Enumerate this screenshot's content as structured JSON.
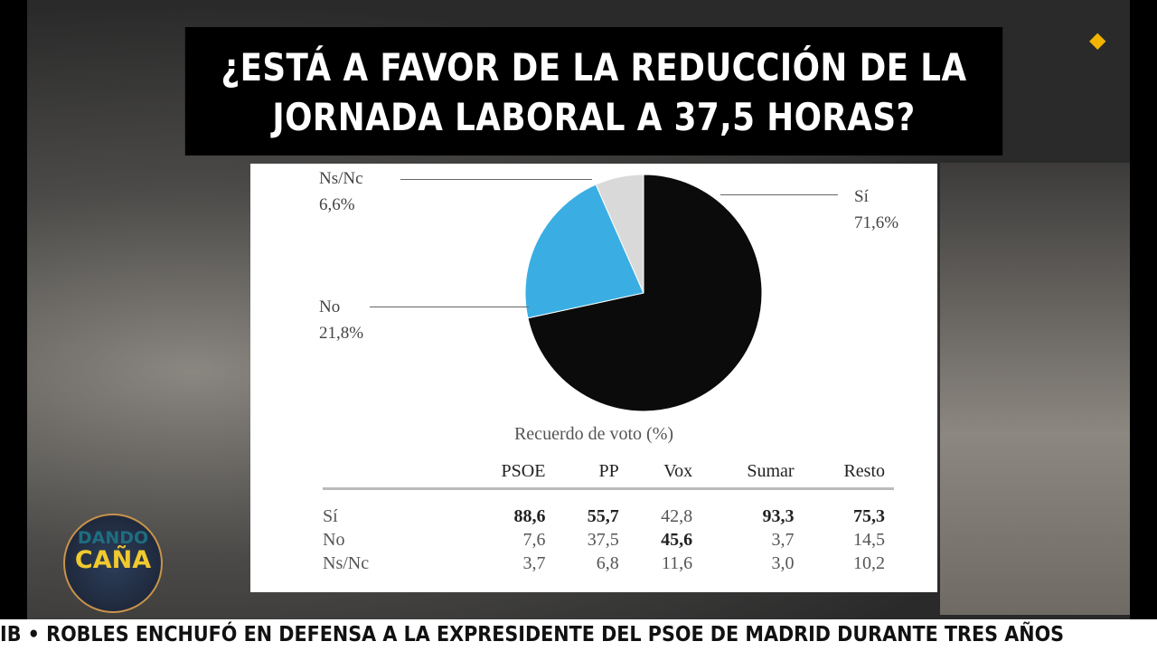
{
  "title": "¿ESTÁ A FAVOR DE LA REDUCCIÓN DE LA JORNADA LABORAL A 37,5 HORAS?",
  "title_line1": "¿ESTÁ A FAVOR DE LA REDUCCIÓN DE LA",
  "title_line2": "JORNADA LABORAL A 37,5 HORAS?",
  "logo": {
    "line1": "DANDO",
    "line2": "CAÑA"
  },
  "ticker": "IB  •  ROBLES ENCHUFÓ EN DEFENSA A LA EXPRESIDENTE DEL PSOE DE MADRID DURANTE TRES AÑOS",
  "chart_data": {
    "type": "pie",
    "slices": [
      {
        "label": "Sí",
        "value": 71.6,
        "text": "71,6%",
        "color": "#0b0b0b"
      },
      {
        "label": "No",
        "value": 21.8,
        "text": "21,8%",
        "color": "#3aaee3"
      },
      {
        "label": "Ns/Nc",
        "value": 6.6,
        "text": "6,6%",
        "color": "#d9d9d9"
      }
    ],
    "table": {
      "title": "Recuerdo de voto (%)",
      "columns": [
        "PSOE",
        "PP",
        "Vox",
        "Sumar",
        "Resto"
      ],
      "rows": [
        {
          "label": "Sí",
          "values": [
            "88,6",
            "55,7",
            "42,8",
            "93,3",
            "75,3"
          ],
          "bold": [
            true,
            true,
            false,
            true,
            true
          ]
        },
        {
          "label": "No",
          "values": [
            "7,6",
            "37,5",
            "45,6",
            "3,7",
            "14,5"
          ],
          "bold": [
            false,
            false,
            true,
            false,
            false
          ]
        },
        {
          "label": "Ns/Nc",
          "values": [
            "3,7",
            "6,8",
            "11,6",
            "3,0",
            "10,2"
          ],
          "bold": [
            false,
            false,
            false,
            false,
            false
          ]
        }
      ]
    }
  }
}
